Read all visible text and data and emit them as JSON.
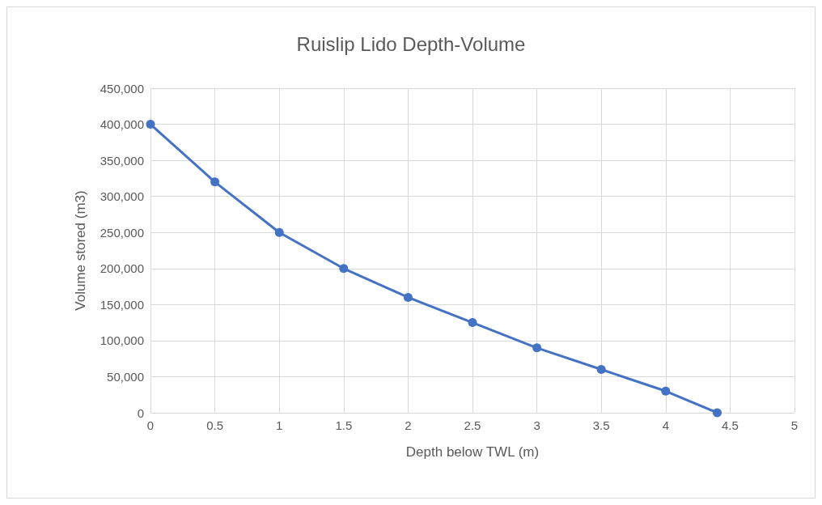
{
  "chart_data": {
    "type": "line",
    "title": "Ruislip Lido Depth-Volume",
    "xlabel": "Depth below TWL (m)",
    "ylabel": "Volume stored (m3)",
    "x": [
      0,
      0.5,
      1,
      1.5,
      2,
      2.5,
      3,
      3.5,
      4,
      4.4
    ],
    "series": [
      {
        "color": "#4472c4",
        "values": [
          400000,
          320000,
          250000,
          200000,
          160000,
          125000,
          90000,
          60000,
          30000,
          0
        ]
      }
    ],
    "xlim": [
      0,
      5
    ],
    "xticks": [
      0,
      0.5,
      1,
      1.5,
      2,
      2.5,
      3,
      3.5,
      4,
      4.5,
      5
    ],
    "ylim": [
      0,
      450000
    ],
    "yticks": [
      0,
      {
        "value": 50000,
        "label": "50,000"
      },
      {
        "value": 100000,
        "label": "100,000"
      },
      {
        "value": 150000,
        "label": "150,000"
      },
      {
        "value": 200000,
        "label": "200,000"
      },
      {
        "value": 250000,
        "label": "250,000"
      },
      {
        "value": 300000,
        "label": "300,000"
      },
      {
        "value": 350000,
        "label": "350,000"
      },
      {
        "value": 400000,
        "label": "400,000"
      },
      {
        "value": 450000,
        "label": "450,000"
      }
    ],
    "grid": true,
    "marker": "circle",
    "line_style": "solid"
  }
}
